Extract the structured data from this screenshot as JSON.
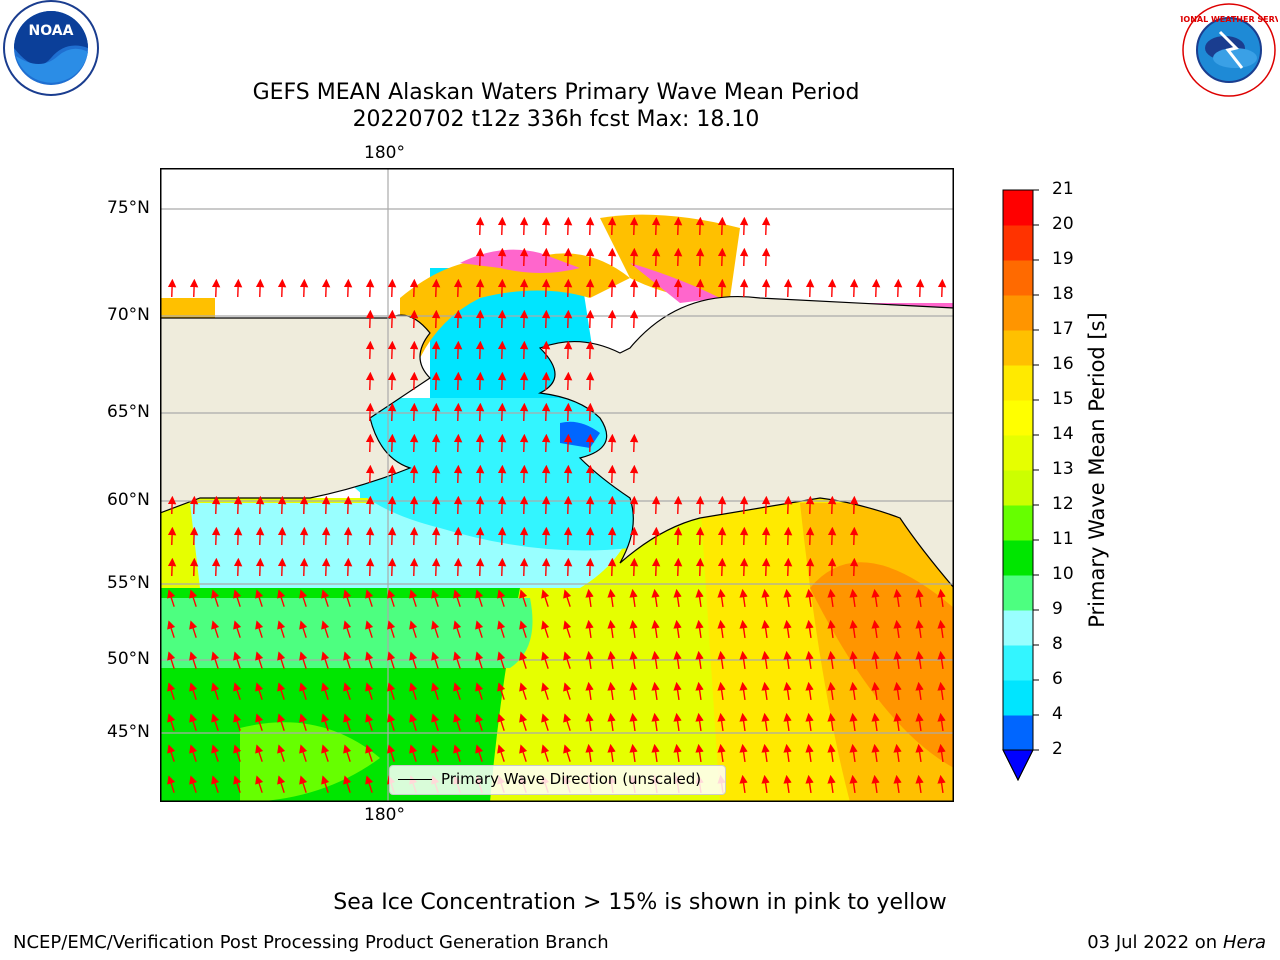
{
  "title_line1": "GEFS MEAN Alaskan Waters Primary Wave Mean Period",
  "title_line2": "20220702 t12z 336h fcst   Max: 18.10",
  "logos": {
    "left": "NOAA",
    "right": "NATIONAL WEATHER SERVICE"
  },
  "map": {
    "lon_label_top": "180°",
    "lon_label_bottom": "180°",
    "lat_labels": [
      "75°N",
      "70°N",
      "65°N",
      "60°N",
      "55°N",
      "50°N",
      "45°N"
    ],
    "land_color": "#efecdc",
    "legend_label": "Primary Wave Direction (unscaled)",
    "arrow_color": "#ff0000"
  },
  "colorbar": {
    "title": "Primary Wave Mean Period [s]",
    "ticks": [
      "2",
      "4",
      "6",
      "8",
      "9",
      "10",
      "11",
      "12",
      "13",
      "14",
      "15",
      "16",
      "17",
      "18",
      "19",
      "20",
      "21"
    ],
    "colors": [
      "#0066ff",
      "#00e5ff",
      "#33f5ff",
      "#99ffff",
      "#4dff80",
      "#00e600",
      "#66ff00",
      "#ccff00",
      "#e6ff00",
      "#ffff00",
      "#ffea00",
      "#ffc000",
      "#ff9500",
      "#ff6a00",
      "#ff3300",
      "#ff0000"
    ]
  },
  "note": "Sea Ice Concentration > 15% is shown in pink to yellow",
  "credit": "NCEP/EMC/Verification Post Processing Product Generation Branch",
  "date_prefix": "03 Jul 2022 on ",
  "date_host": "Hera"
}
